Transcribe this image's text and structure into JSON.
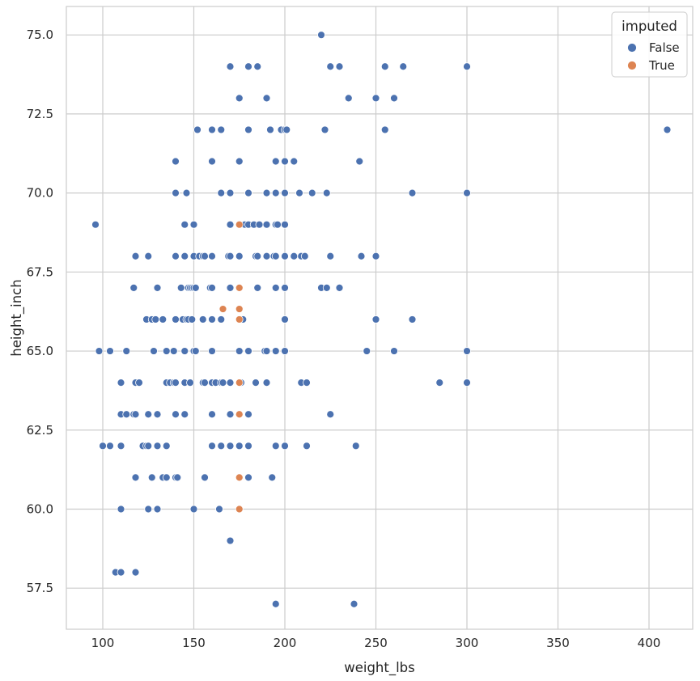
{
  "chart_data": {
    "type": "scatter",
    "title": "",
    "xlabel": "weight_lbs",
    "ylabel": "height_inch",
    "xlim": [
      80,
      424
    ],
    "ylim": [
      56.2,
      75.9
    ],
    "xticks": [
      100,
      150,
      200,
      250,
      300,
      350,
      400
    ],
    "yticks": [
      57.5,
      60.0,
      62.5,
      65.0,
      67.5,
      70.0,
      72.5,
      75.0
    ],
    "xtick_labels": [
      "100",
      "150",
      "200",
      "250",
      "300",
      "350",
      "400"
    ],
    "ytick_labels": [
      "57.5",
      "60.0",
      "62.5",
      "65.0",
      "67.5",
      "70.0",
      "72.5",
      "75.0"
    ],
    "grid": true,
    "legend": {
      "title": "imputed",
      "position": "top-right",
      "entries": [
        {
          "label": "False",
          "color": "#4c72b0"
        },
        {
          "label": "True",
          "color": "#dd8452"
        }
      ]
    },
    "series": [
      {
        "name": "False",
        "color": "#4c72b0",
        "points": [
          [
            220,
            75
          ],
          [
            170,
            74
          ],
          [
            180,
            74
          ],
          [
            185,
            74
          ],
          [
            225,
            74
          ],
          [
            230,
            74
          ],
          [
            255,
            74
          ],
          [
            265,
            74
          ],
          [
            300,
            74
          ],
          [
            175,
            73
          ],
          [
            190,
            73
          ],
          [
            235,
            73
          ],
          [
            250,
            73
          ],
          [
            260,
            73
          ],
          [
            152,
            72
          ],
          [
            160,
            72
          ],
          [
            165,
            72
          ],
          [
            180,
            72
          ],
          [
            192,
            72
          ],
          [
            198,
            72
          ],
          [
            200,
            72
          ],
          [
            201,
            72
          ],
          [
            222,
            72
          ],
          [
            255,
            72
          ],
          [
            410,
            72
          ],
          [
            140,
            71
          ],
          [
            160,
            71
          ],
          [
            175,
            71
          ],
          [
            195,
            71
          ],
          [
            200,
            71
          ],
          [
            205,
            71
          ],
          [
            241,
            71
          ],
          [
            96,
            69
          ],
          [
            145,
            69
          ],
          [
            150,
            69
          ],
          [
            170,
            69
          ],
          [
            178,
            69
          ],
          [
            180,
            69
          ],
          [
            183,
            69
          ],
          [
            186,
            69
          ],
          [
            190,
            69
          ],
          [
            195,
            69
          ],
          [
            196,
            69
          ],
          [
            200,
            69
          ],
          [
            140,
            70
          ],
          [
            146,
            70
          ],
          [
            165,
            70
          ],
          [
            170,
            70
          ],
          [
            180,
            70
          ],
          [
            190,
            70
          ],
          [
            195,
            70
          ],
          [
            200,
            70
          ],
          [
            208,
            70
          ],
          [
            215,
            70
          ],
          [
            223,
            70
          ],
          [
            270,
            70
          ],
          [
            300,
            70
          ],
          [
            118,
            68
          ],
          [
            125,
            68
          ],
          [
            140,
            68
          ],
          [
            145,
            68
          ],
          [
            150,
            68
          ],
          [
            153,
            68
          ],
          [
            155,
            68
          ],
          [
            156,
            68
          ],
          [
            160,
            68
          ],
          [
            169,
            68
          ],
          [
            170,
            68
          ],
          [
            175,
            68
          ],
          [
            184,
            68
          ],
          [
            185,
            68
          ],
          [
            190,
            68
          ],
          [
            194,
            68
          ],
          [
            195,
            68
          ],
          [
            200,
            68
          ],
          [
            205,
            68
          ],
          [
            209,
            68
          ],
          [
            211,
            68
          ],
          [
            225,
            68
          ],
          [
            242,
            68
          ],
          [
            250,
            68
          ],
          [
            117,
            67
          ],
          [
            130,
            67
          ],
          [
            143,
            67
          ],
          [
            147,
            67
          ],
          [
            148,
            67
          ],
          [
            149,
            67
          ],
          [
            150,
            67
          ],
          [
            151,
            67
          ],
          [
            159,
            67
          ],
          [
            160,
            67
          ],
          [
            170,
            67
          ],
          [
            185,
            67
          ],
          [
            195,
            67
          ],
          [
            200,
            67
          ],
          [
            220,
            67
          ],
          [
            223,
            67
          ],
          [
            230,
            67
          ],
          [
            124,
            66
          ],
          [
            127,
            66
          ],
          [
            129,
            66
          ],
          [
            133,
            66
          ],
          [
            140,
            66
          ],
          [
            144,
            66
          ],
          [
            146,
            66
          ],
          [
            147,
            66
          ],
          [
            149,
            66
          ],
          [
            155,
            66
          ],
          [
            160,
            66
          ],
          [
            165,
            66
          ],
          [
            175,
            66
          ],
          [
            177,
            66
          ],
          [
            200,
            66
          ],
          [
            250,
            66
          ],
          [
            270,
            66
          ],
          [
            98,
            65
          ],
          [
            104,
            65
          ],
          [
            113,
            65
          ],
          [
            128,
            65
          ],
          [
            135,
            65
          ],
          [
            139,
            65
          ],
          [
            145,
            65
          ],
          [
            150,
            65
          ],
          [
            151,
            65
          ],
          [
            160,
            65
          ],
          [
            175,
            65
          ],
          [
            180,
            65
          ],
          [
            189,
            65
          ],
          [
            190,
            65
          ],
          [
            195,
            65
          ],
          [
            200,
            65
          ],
          [
            245,
            65
          ],
          [
            260,
            65
          ],
          [
            300,
            65
          ],
          [
            110,
            64
          ],
          [
            118,
            64
          ],
          [
            120,
            64
          ],
          [
            135,
            64
          ],
          [
            137,
            64
          ],
          [
            139,
            64
          ],
          [
            140,
            64
          ],
          [
            145,
            64
          ],
          [
            148,
            64
          ],
          [
            155,
            64
          ],
          [
            156,
            64
          ],
          [
            160,
            64
          ],
          [
            162,
            64
          ],
          [
            165,
            64
          ],
          [
            166,
            64
          ],
          [
            170,
            64
          ],
          [
            176,
            64
          ],
          [
            184,
            64
          ],
          [
            190,
            64
          ],
          [
            209,
            64
          ],
          [
            212,
            64
          ],
          [
            285,
            64
          ],
          [
            300,
            64
          ],
          [
            110,
            63
          ],
          [
            113,
            63
          ],
          [
            117,
            63
          ],
          [
            118,
            63
          ],
          [
            125,
            63
          ],
          [
            130,
            63
          ],
          [
            140,
            63
          ],
          [
            145,
            63
          ],
          [
            160,
            63
          ],
          [
            170,
            63
          ],
          [
            180,
            63
          ],
          [
            225,
            63
          ],
          [
            100,
            62
          ],
          [
            104,
            62
          ],
          [
            110,
            62
          ],
          [
            122,
            62
          ],
          [
            124,
            62
          ],
          [
            125,
            62
          ],
          [
            130,
            62
          ],
          [
            135,
            62
          ],
          [
            160,
            62
          ],
          [
            165,
            62
          ],
          [
            170,
            62
          ],
          [
            175,
            62
          ],
          [
            180,
            62
          ],
          [
            195,
            62
          ],
          [
            200,
            62
          ],
          [
            212,
            62
          ],
          [
            239,
            62
          ],
          [
            118,
            61
          ],
          [
            127,
            61
          ],
          [
            133,
            61
          ],
          [
            135,
            61
          ],
          [
            140,
            61
          ],
          [
            141,
            61
          ],
          [
            156,
            61
          ],
          [
            180,
            61
          ],
          [
            193,
            61
          ],
          [
            110,
            60
          ],
          [
            125,
            60
          ],
          [
            130,
            60
          ],
          [
            150,
            60
          ],
          [
            164,
            60
          ],
          [
            170,
            59
          ],
          [
            107,
            58
          ],
          [
            110,
            58
          ],
          [
            118,
            58
          ],
          [
            195,
            57
          ],
          [
            238,
            57
          ]
        ]
      },
      {
        "name": "True",
        "color": "#dd8452",
        "points": [
          [
            175,
            69
          ],
          [
            175,
            67
          ],
          [
            166,
            66.33
          ],
          [
            175,
            66.33
          ],
          [
            175,
            66
          ],
          [
            175,
            64
          ],
          [
            175,
            63
          ],
          [
            175,
            61
          ],
          [
            175,
            60
          ]
        ]
      }
    ]
  }
}
